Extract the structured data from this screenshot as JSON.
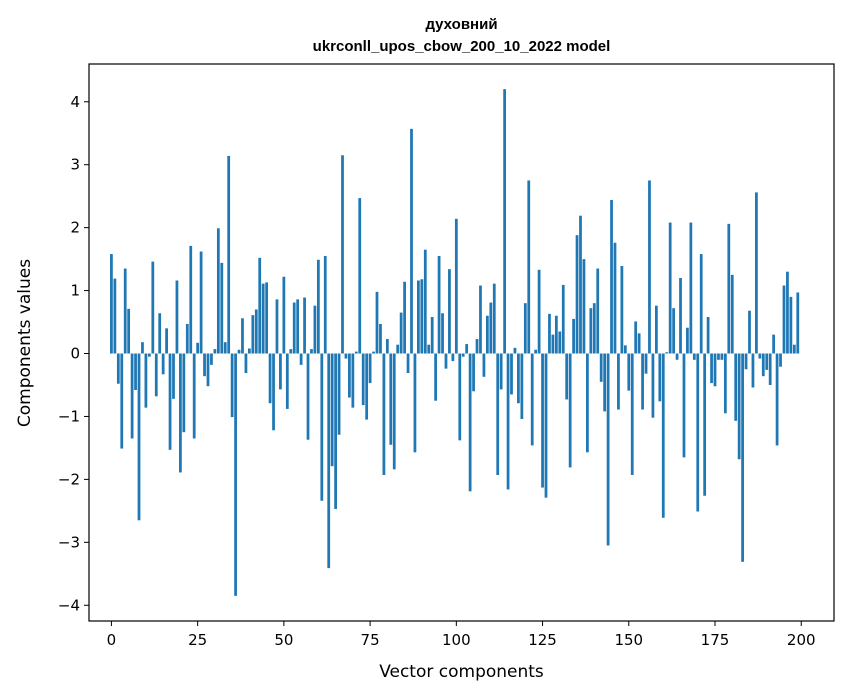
{
  "chart_data": {
    "type": "bar",
    "title_line1": "духовний",
    "title_line2": "ukrconll_upos_cbow_200_10_2022 model",
    "xlabel": "Vector components",
    "ylabel": "Components values",
    "xlim": [
      -6.5,
      209.5
    ],
    "ylim": [
      -4.25,
      4.6
    ],
    "xticks": [
      0,
      25,
      50,
      75,
      100,
      125,
      150,
      175,
      200
    ],
    "yticks": [
      -4,
      -3,
      -2,
      -1,
      0,
      1,
      2,
      3,
      4
    ],
    "ytick_labels": [
      "−4",
      "−3",
      "−2",
      "−1",
      "0",
      "1",
      "2",
      "3",
      "4"
    ],
    "bar_color": "#1f77b4",
    "grid": false,
    "x": [
      0,
      1,
      2,
      3,
      4,
      5,
      6,
      7,
      8,
      9,
      10,
      11,
      12,
      13,
      14,
      15,
      16,
      17,
      18,
      19,
      20,
      21,
      22,
      23,
      24,
      25,
      26,
      27,
      28,
      29,
      30,
      31,
      32,
      33,
      34,
      35,
      36,
      37,
      38,
      39,
      40,
      41,
      42,
      43,
      44,
      45,
      46,
      47,
      48,
      49,
      50,
      51,
      52,
      53,
      54,
      55,
      56,
      57,
      58,
      59,
      60,
      61,
      62,
      63,
      64,
      65,
      66,
      67,
      68,
      69,
      70,
      71,
      72,
      73,
      74,
      75,
      76,
      77,
      78,
      79,
      80,
      81,
      82,
      83,
      84,
      85,
      86,
      87,
      88,
      89,
      90,
      91,
      92,
      93,
      94,
      95,
      96,
      97,
      98,
      99,
      100,
      101,
      102,
      103,
      104,
      105,
      106,
      107,
      108,
      109,
      110,
      111,
      112,
      113,
      114,
      115,
      116,
      117,
      118,
      119,
      120,
      121,
      122,
      123,
      124,
      125,
      126,
      127,
      128,
      129,
      130,
      131,
      132,
      133,
      134,
      135,
      136,
      137,
      138,
      139,
      140,
      141,
      142,
      143,
      144,
      145,
      146,
      147,
      148,
      149,
      150,
      151,
      152,
      153,
      154,
      155,
      156,
      157,
      158,
      159,
      160,
      161,
      162,
      163,
      164,
      165,
      166,
      167,
      168,
      169,
      170,
      171,
      172,
      173,
      174,
      175,
      176,
      177,
      178,
      179,
      180,
      181,
      182,
      183,
      184,
      185,
      186,
      187,
      188,
      189,
      190,
      191,
      192,
      193,
      194,
      195,
      196,
      197,
      198,
      199
    ],
    "values": [
      1.58,
      1.19,
      -0.48,
      -1.51,
      1.35,
      0.71,
      -1.35,
      -0.58,
      -2.65,
      0.18,
      -0.86,
      -0.05,
      1.46,
      -0.68,
      0.64,
      -0.33,
      0.4,
      -1.53,
      -0.72,
      1.16,
      -1.89,
      -1.25,
      0.47,
      1.71,
      -1.35,
      0.17,
      1.62,
      -0.36,
      -0.52,
      -0.18,
      0.07,
      1.99,
      1.44,
      0.18,
      3.14,
      -1.01,
      -3.85,
      0.06,
      0.56,
      -0.31,
      0.08,
      0.61,
      0.7,
      1.52,
      1.11,
      1.13,
      -0.79,
      -1.22,
      0.86,
      -0.57,
      1.22,
      -0.88,
      0.07,
      0.81,
      0.86,
      -0.18,
      0.89,
      -1.37,
      0.07,
      0.76,
      1.49,
      -2.34,
      1.55,
      -3.41,
      -1.79,
      -2.47,
      -1.29,
      3.15,
      -0.08,
      -0.7,
      -0.86,
      0.03,
      2.47,
      -0.82,
      -1.05,
      -0.47,
      0.03,
      0.98,
      0.47,
      -1.93,
      0.23,
      -1.45,
      -1.84,
      0.14,
      0.65,
      1.14,
      -0.31,
      3.57,
      -1.57,
      1.16,
      1.18,
      1.65,
      0.14,
      0.58,
      -0.75,
      1.55,
      0.64,
      -0.24,
      1.34,
      -0.12,
      2.14,
      -1.38,
      -0.05,
      0.15,
      -2.19,
      -0.6,
      0.23,
      1.08,
      -0.37,
      0.6,
      0.81,
      1.11,
      -1.93,
      -0.57,
      4.2,
      -2.16,
      -0.65,
      0.09,
      -0.79,
      -1.04,
      0.8,
      2.75,
      -1.46,
      0.06,
      1.33,
      -2.13,
      -2.29,
      0.63,
      0.3,
      0.6,
      0.35,
      1.09,
      -0.73,
      -1.81,
      0.55,
      1.88,
      2.19,
      1.5,
      -1.57,
      0.72,
      0.8,
      1.35,
      -0.45,
      -0.92,
      -3.05,
      2.44,
      1.76,
      -0.89,
      1.39,
      0.13,
      -0.59,
      -1.93,
      0.51,
      0.32,
      -0.89,
      -0.32,
      2.75,
      -1.02,
      0.76,
      -0.76,
      -2.61,
      0.02,
      2.08,
      0.72,
      -0.1,
      1.2,
      -1.65,
      0.41,
      2.08,
      -0.1,
      -2.51,
      1.58,
      -2.26,
      0.58,
      -0.47,
      -0.52,
      -0.1,
      -0.1,
      -0.95,
      2.06,
      1.25,
      -1.07,
      -1.68,
      -3.31,
      -0.25,
      0.68,
      -0.54,
      2.56,
      -0.08,
      -0.36,
      -0.26,
      -0.5,
      0.3,
      -1.46,
      -0.21,
      1.08,
      1.3,
      0.9,
      0.14,
      0.97
    ]
  }
}
